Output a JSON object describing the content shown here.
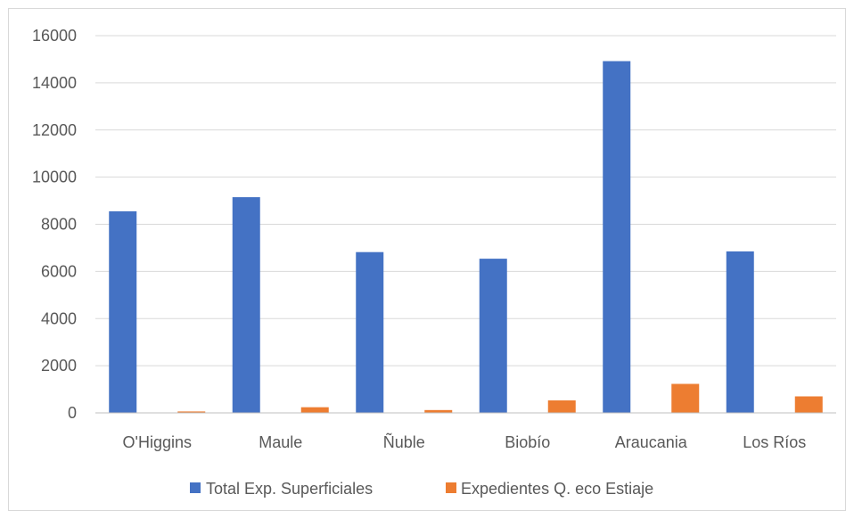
{
  "chart_data": {
    "type": "bar",
    "categories": [
      "O'Higgins",
      "Maule",
      "Ñuble",
      "Biobío",
      "Araucania",
      "Los Ríos"
    ],
    "series": [
      {
        "name": "Total Exp. Superficiales",
        "color": "#4472C4",
        "values": [
          8550,
          9150,
          6820,
          6540,
          14920,
          6850
        ]
      },
      {
        "name": "Expedientes Q. eco Estiaje",
        "color": "#ED7D31",
        "values": [
          60,
          240,
          120,
          530,
          1230,
          700
        ]
      }
    ],
    "y_ticks": [
      "0",
      "2000",
      "4000",
      "6000",
      "8000",
      "10000",
      "12000",
      "14000",
      "16000"
    ],
    "ylim": [
      0,
      16000
    ],
    "grid": true,
    "legend_position": "bottom"
  }
}
